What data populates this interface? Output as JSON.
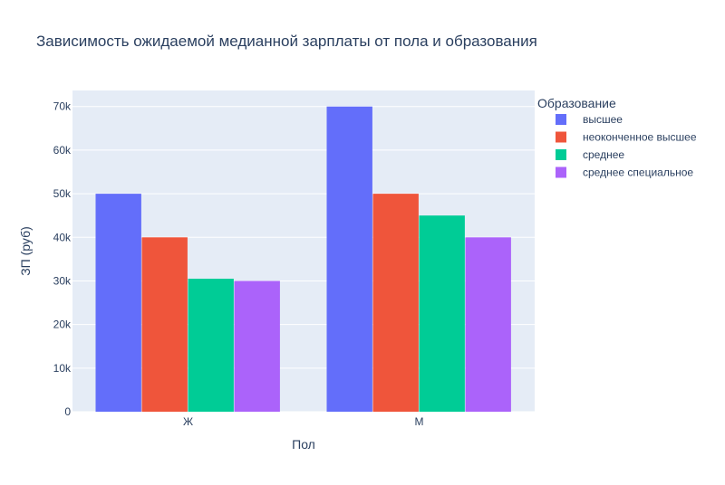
{
  "chart_data": {
    "type": "bar",
    "title": "Зависимость ожидаемой медианной зарплаты от пола и образования",
    "xlabel": "Пол",
    "ylabel": "ЗП (руб)",
    "categories": [
      "Ж",
      "М"
    ],
    "series": [
      {
        "name": "высшее",
        "values": [
          50000,
          70000
        ],
        "color": "#636efa"
      },
      {
        "name": "неоконченное высшее",
        "values": [
          40000,
          50000
        ],
        "color": "#ef553b"
      },
      {
        "name": "среднее",
        "values": [
          30500,
          45000
        ],
        "color": "#00cc96"
      },
      {
        "name": "среднее специальное",
        "values": [
          30000,
          40000
        ],
        "color": "#ab63fa"
      }
    ],
    "ylim": [
      0,
      73684
    ],
    "yticks": [
      0,
      10000,
      20000,
      30000,
      40000,
      50000,
      60000,
      70000
    ],
    "ytick_labels": [
      "0",
      "10k",
      "20k",
      "30k",
      "40k",
      "50k",
      "60k",
      "70k"
    ],
    "legend_title": "Образование",
    "legend_position": "right",
    "grid": true,
    "plot_background": "#e5ecf6"
  }
}
